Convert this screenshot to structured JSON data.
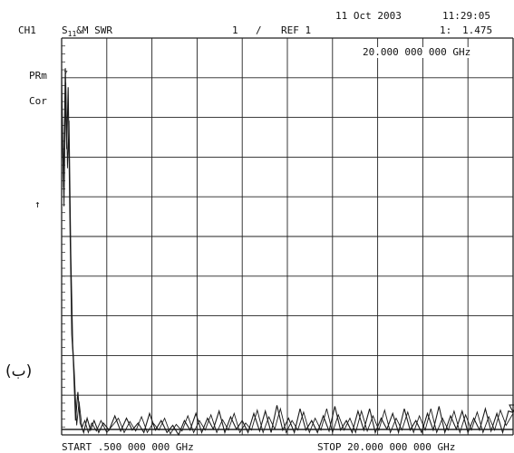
{
  "header": {
    "date": "11 Oct 2003",
    "time": "11:29:05",
    "channel": "CH1",
    "param_main": "S",
    "param_sub": "11",
    "param_rest": "&M SWR",
    "scale": "1",
    "slash": "/",
    "ref": "REF 1",
    "marker_index": "1:",
    "marker_value": "1.475",
    "marker_freq": "20.000 000 000 GHz"
  },
  "side_labels": {
    "prm": "PRm",
    "cor": "Cor",
    "ref_pos": "↑",
    "persian": "(ب)"
  },
  "footer": {
    "start": "START  .500 000 000 GHz",
    "stop": "STOP 20.000 000 000 GHz"
  },
  "chart_data": {
    "type": "line",
    "title": "",
    "xlabel": "",
    "ylabel": "",
    "xlim": [
      0.5,
      20.0
    ],
    "ylim": [
      1.0,
      9.0
    ],
    "grid": true,
    "reference_value": 1,
    "marker": {
      "x": 20.0,
      "y": 1.475
    },
    "series": [
      {
        "x": [
          0.5,
          0.58,
          0.66,
          0.72,
          0.78,
          0.86,
          0.94,
          1.0,
          1.1,
          1.2,
          1.3,
          1.45,
          1.6,
          1.75,
          1.9,
          2.1,
          2.3,
          2.55,
          2.8,
          3.05,
          3.3,
          3.55,
          3.8,
          4.05,
          4.3,
          4.55,
          4.8,
          5.05,
          5.3,
          5.55,
          5.8,
          6.05,
          6.3,
          6.55,
          6.8,
          7.05,
          7.3,
          7.55,
          7.8,
          8.05,
          8.3,
          8.55,
          8.8,
          9.05,
          9.3,
          9.55,
          9.8,
          10.05,
          10.3,
          10.55,
          10.8,
          11.05,
          11.3,
          11.55,
          11.8,
          12.05,
          12.3,
          12.55,
          12.8,
          13.05,
          13.3,
          13.55,
          13.8,
          14.05,
          14.3,
          14.55,
          14.8,
          15.05,
          15.3,
          15.55,
          15.8,
          16.05,
          16.3,
          16.55,
          16.8,
          17.05,
          17.3,
          17.55,
          17.8,
          18.05,
          18.3,
          18.55,
          18.8,
          19.05,
          19.3,
          19.55,
          19.8,
          20.0
        ],
        "values": [
          8.5,
          6.2,
          8.7,
          7.0,
          8.3,
          5.4,
          3.1,
          2.6,
          1.3,
          1.9,
          1.25,
          1.05,
          1.35,
          1.1,
          1.3,
          1.05,
          1.25,
          1.1,
          1.4,
          1.08,
          1.35,
          1.1,
          1.25,
          1.05,
          1.45,
          1.1,
          1.3,
          1.05,
          1.2,
          1.0,
          1.3,
          1.1,
          1.45,
          1.05,
          1.35,
          1.12,
          1.5,
          1.05,
          1.38,
          1.12,
          1.3,
          1.05,
          1.45,
          1.08,
          1.5,
          1.05,
          1.62,
          1.1,
          1.35,
          1.05,
          1.55,
          1.1,
          1.3,
          1.05,
          1.4,
          1.08,
          1.6,
          1.1,
          1.3,
          1.05,
          1.5,
          1.1,
          1.55,
          1.05,
          1.35,
          1.12,
          1.45,
          1.05,
          1.55,
          1.1,
          1.3,
          1.05,
          1.45,
          1.1,
          1.6,
          1.05,
          1.4,
          1.12,
          1.5,
          1.05,
          1.35,
          1.1,
          1.55,
          1.08,
          1.45,
          1.05,
          1.5,
          1.47
        ]
      },
      {
        "x": [
          0.5,
          0.6,
          0.68,
          0.75,
          0.82,
          0.9,
          0.98,
          1.05,
          1.15,
          1.25,
          1.38,
          1.5,
          1.65,
          1.8,
          2.0,
          2.2,
          2.45,
          2.7,
          2.95,
          3.2,
          3.45,
          3.7,
          3.95,
          4.2,
          4.45,
          4.7,
          4.95,
          5.2,
          5.45,
          5.7,
          5.95,
          6.2,
          6.45,
          6.7,
          6.95,
          7.2,
          7.45,
          7.7,
          7.95,
          8.2,
          8.45,
          8.7,
          8.95,
          9.2,
          9.45,
          9.7,
          9.95,
          10.2,
          10.45,
          10.7,
          10.95,
          11.2,
          11.45,
          11.7,
          11.95,
          12.2,
          12.45,
          12.7,
          12.95,
          13.2,
          13.45,
          13.7,
          13.95,
          14.2,
          14.45,
          14.7,
          14.95,
          15.2,
          15.45,
          15.7,
          15.95,
          16.2,
          16.45,
          16.7,
          16.95,
          17.2,
          17.45,
          17.7,
          17.95,
          18.2,
          18.45,
          18.7,
          18.95,
          19.2,
          19.45,
          19.7,
          20.0
        ],
        "values": [
          7.9,
          5.8,
          8.4,
          6.6,
          7.6,
          4.8,
          2.9,
          2.3,
          1.2,
          1.7,
          1.15,
          1.3,
          1.05,
          1.25,
          1.08,
          1.3,
          1.05,
          1.2,
          1.35,
          1.05,
          1.28,
          1.08,
          1.38,
          1.05,
          1.25,
          1.1,
          1.35,
          1.02,
          1.22,
          1.08,
          1.4,
          1.05,
          1.3,
          1.1,
          1.42,
          1.05,
          1.32,
          1.1,
          1.45,
          1.05,
          1.25,
          1.1,
          1.52,
          1.05,
          1.38,
          1.12,
          1.55,
          1.05,
          1.3,
          1.1,
          1.48,
          1.05,
          1.35,
          1.1,
          1.55,
          1.05,
          1.42,
          1.1,
          1.35,
          1.05,
          1.5,
          1.08,
          1.4,
          1.1,
          1.52,
          1.05,
          1.35,
          1.1,
          1.48,
          1.05,
          1.4,
          1.1,
          1.55,
          1.05,
          1.35,
          1.1,
          1.5,
          1.05,
          1.42,
          1.1,
          1.48,
          1.05,
          1.38,
          1.1,
          1.52,
          1.2,
          1.45
        ]
      }
    ]
  }
}
